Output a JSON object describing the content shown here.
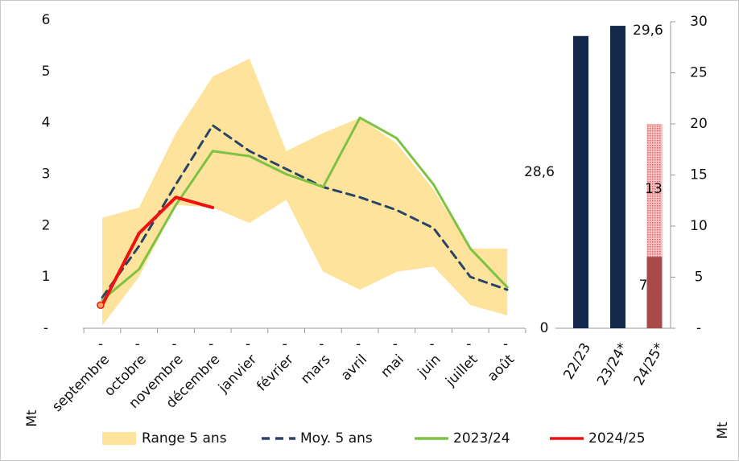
{
  "chart_data": [
    {
      "type": "line",
      "categories": [
        "septembre",
        "octobre",
        "novembre",
        "décembre",
        "janvier",
        "février",
        "mars",
        "avril",
        "mai",
        "juin",
        "juillet",
        "août"
      ],
      "x_sublabels": [
        "-",
        "-",
        "-",
        "-",
        "-",
        "-",
        "-",
        "-",
        "-",
        "-",
        "-",
        "-"
      ],
      "ylim": [
        0,
        6
      ],
      "yticks": [
        {
          "value": 0,
          "label": "-"
        },
        1,
        2,
        3,
        4,
        5,
        6
      ],
      "y_label": "Mt",
      "range": {
        "name": "Range 5 ans",
        "color": "#fde39c",
        "low": [
          0.05,
          1.0,
          2.4,
          2.35,
          2.05,
          2.5,
          1.1,
          0.75,
          1.1,
          1.2,
          0.45,
          0.25
        ],
        "high": [
          2.15,
          2.35,
          3.8,
          4.9,
          5.25,
          3.45,
          3.8,
          4.1,
          3.6,
          2.7,
          1.55,
          1.55
        ]
      },
      "series": [
        {
          "name": "Moy. 5 ans",
          "color": "#2b4466",
          "dashed": true,
          "values": [
            0.6,
            1.6,
            2.8,
            3.95,
            3.45,
            3.1,
            2.75,
            2.55,
            2.3,
            1.95,
            1.0,
            0.75
          ]
        },
        {
          "name": "2023/24",
          "color": "#7dc242",
          "values": [
            0.55,
            1.15,
            2.4,
            3.45,
            3.35,
            3.0,
            2.75,
            4.1,
            3.7,
            2.8,
            1.55,
            0.8
          ]
        },
        {
          "name": "2024/25",
          "color": "#ee1111",
          "values": [
            0.45,
            1.85,
            2.55,
            2.35,
            null,
            null,
            null,
            null,
            null,
            null,
            null,
            null
          ]
        }
      ]
    },
    {
      "type": "stacked_bar",
      "categories": [
        "22/23",
        "23/24*",
        "24/25*"
      ],
      "ylim": [
        0,
        30
      ],
      "yticks": [
        0
      ],
      "y2lim": [
        0,
        30
      ],
      "y2ticks": [
        {
          "value": 0,
          "label": "-"
        },
        5,
        10,
        15,
        20,
        25,
        30
      ],
      "y2_label": "Mt",
      "series": [
        {
          "axis": "y2",
          "colors": [
            "#14294a",
            "#14294a",
            "#a84a4a"
          ],
          "values": [
            28.6,
            29.6,
            7
          ],
          "value_labels": [
            "28,6",
            "29,6",
            "7"
          ]
        },
        {
          "axis": "y2",
          "color": "#e87878",
          "pattern": true,
          "values": [
            null,
            null,
            13
          ]
        }
      ]
    }
  ]
}
